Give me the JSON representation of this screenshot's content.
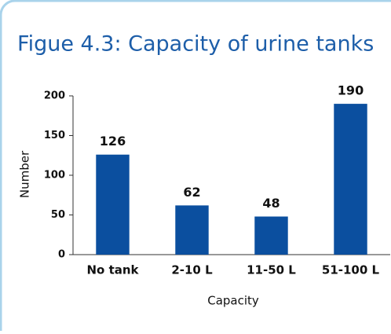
{
  "chart_data": {
    "type": "bar",
    "title": "Figue 4.3: Capacity of urine tanks",
    "categories": [
      "No tank",
      "2-10 L",
      "11-50 L",
      "51-100 L"
    ],
    "values": [
      126,
      62,
      48,
      190
    ],
    "color": "#0b4f9f",
    "xlabel": "Capacity",
    "ylabel": "Number",
    "ylim": [
      0,
      200
    ],
    "yticks": [
      0,
      50,
      100,
      150,
      200
    ],
    "grid": false
  }
}
